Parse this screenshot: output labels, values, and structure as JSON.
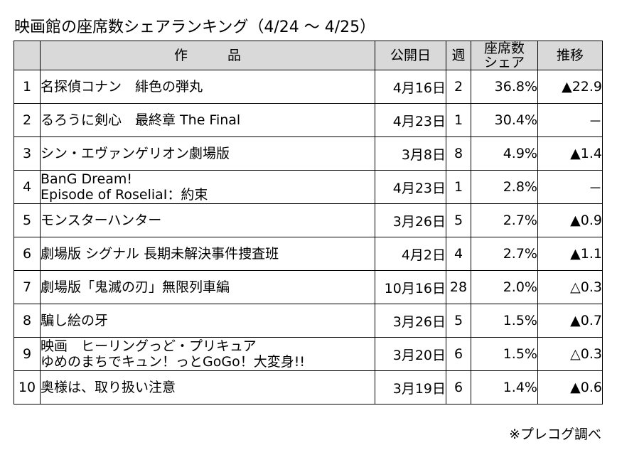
{
  "title": "映画館の座席数シェアランキング（4/24 ～ 4/25）",
  "columns": {
    "rank": "",
    "title_left": "作",
    "title_right": "品",
    "open_date": "公開日",
    "week": "週",
    "share_line1": "座席数",
    "share_line2": "シェア",
    "trend": "推移"
  },
  "source": "※プレコグ調べ",
  "chart_data": {
    "type": "table",
    "title": "映画館の座席数シェアランキング（4/24 ～ 4/25）",
    "columns": [
      "",
      "作　品",
      "公開日",
      "週",
      "座席数シェア",
      "推移"
    ],
    "rows": [
      {
        "rank": "1",
        "title": [
          "名探偵コナン　緋色の弾丸"
        ],
        "open_date": "4月16日",
        "week": "2",
        "share": "36.8%",
        "trend": "▲22.9"
      },
      {
        "rank": "2",
        "title": [
          "るろうに剣心　最終章 The Final"
        ],
        "open_date": "4月23日",
        "week": "1",
        "share": "30.4%",
        "trend": "－"
      },
      {
        "rank": "3",
        "title": [
          "シン・エヴァンゲリオン劇場版"
        ],
        "open_date": "3月8日",
        "week": "8",
        "share": "4.9%",
        "trend": "▲1.4"
      },
      {
        "rank": "4",
        "title": [
          "BanG Dream!",
          "Episode of RoseliaⅠ：約束"
        ],
        "open_date": "4月23日",
        "week": "1",
        "share": "2.8%",
        "trend": "－"
      },
      {
        "rank": "5",
        "title": [
          "モンスターハンター"
        ],
        "open_date": "3月26日",
        "week": "5",
        "share": "2.7%",
        "trend": "▲0.9"
      },
      {
        "rank": "6",
        "title": [
          "劇場版 シグナル 長期未解決事件捜査班"
        ],
        "open_date": "4月2日",
        "week": "4",
        "share": "2.7%",
        "trend": "▲1.1"
      },
      {
        "rank": "7",
        "title": [
          "劇場版「鬼滅の刃」無限列車編"
        ],
        "open_date": "10月16日",
        "week": "28",
        "share": "2.0%",
        "trend": "△0.3"
      },
      {
        "rank": "8",
        "title": [
          "騙し絵の牙"
        ],
        "open_date": "3月26日",
        "week": "5",
        "share": "1.5%",
        "trend": "▲0.7"
      },
      {
        "rank": "9",
        "title": [
          "映画　ヒーリングっど・プリキュア",
          "ゆめのまちでキュン！っとGoGo！大変身!!"
        ],
        "open_date": "3月20日",
        "week": "6",
        "share": "1.5%",
        "trend": "△0.3"
      },
      {
        "rank": "10",
        "title": [
          "奥様は、取り扱い注意"
        ],
        "open_date": "3月19日",
        "week": "6",
        "share": "1.4%",
        "trend": "▲0.6"
      }
    ]
  }
}
